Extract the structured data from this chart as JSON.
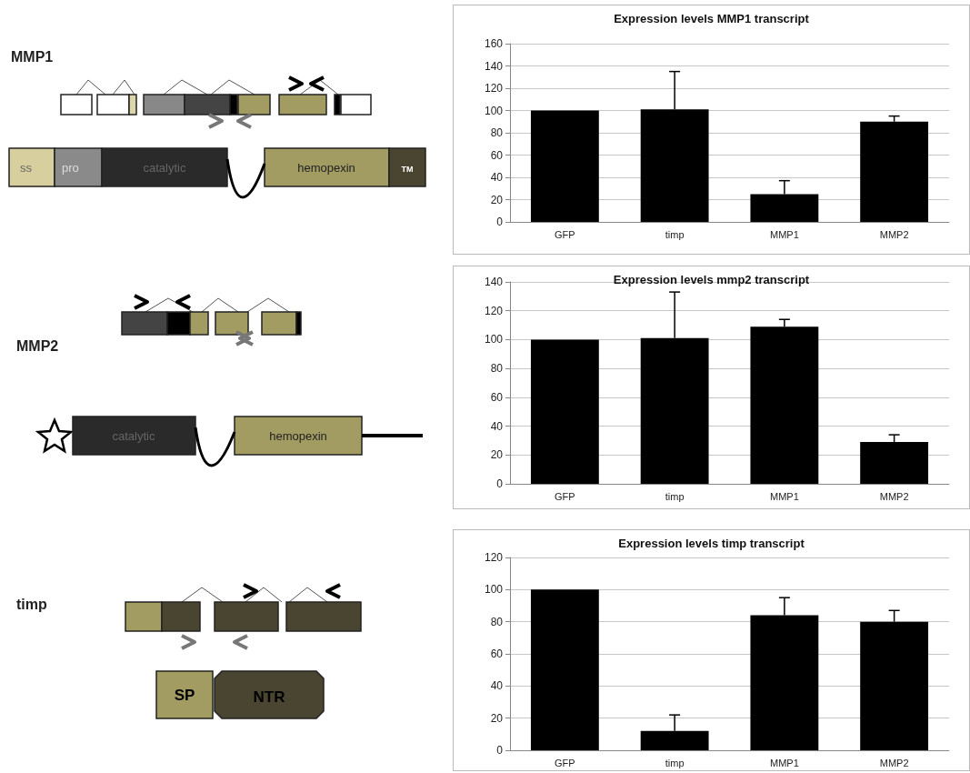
{
  "chart_data": [
    {
      "type": "bar",
      "title": "Expression levels MMP1 transcript",
      "categories": [
        "GFP",
        "timp",
        "MMP1",
        "MMP2"
      ],
      "values": [
        100,
        101,
        25,
        90
      ],
      "errors": [
        null,
        [
          101,
          135
        ],
        [
          25,
          37
        ],
        [
          90,
          95
        ]
      ],
      "color": "#000000",
      "ylim": [
        0,
        160
      ],
      "yticks": [
        0,
        20,
        40,
        60,
        80,
        100,
        120,
        140,
        160
      ],
      "grid": "y",
      "annotations": [
        "MMP1",
        "ss",
        "pro",
        "catalytic",
        "hemopexin",
        "TM"
      ]
    },
    {
      "type": "bar",
      "title": "Expression levels mmp2 transcript",
      "categories": [
        "GFP",
        "timp",
        "MMP1",
        "MMP2"
      ],
      "values": [
        100,
        101,
        109,
        29
      ],
      "errors": [
        null,
        [
          101,
          133
        ],
        [
          109,
          114
        ],
        [
          29,
          34
        ]
      ],
      "color": "#000000",
      "ylim": [
        0,
        140
      ],
      "yticks": [
        0,
        20,
        40,
        60,
        80,
        100,
        120,
        140
      ],
      "grid": "y",
      "annotations": [
        "MMP2",
        "catalytic",
        "hemopexin"
      ]
    },
    {
      "type": "bar",
      "title": "Expression levels timp transcript",
      "categories": [
        "GFP",
        "timp",
        "MMP1",
        "MMP2"
      ],
      "values": [
        100,
        12,
        84,
        80
      ],
      "errors": [
        null,
        [
          12,
          22
        ],
        [
          84,
          95
        ],
        [
          80,
          87
        ]
      ],
      "color": "#000000",
      "ylim": [
        0,
        120
      ],
      "yticks": [
        0,
        20,
        40,
        60,
        80,
        100,
        120
      ],
      "grid": "y",
      "annotations": [
        "timp",
        "SP",
        "NTR"
      ]
    }
  ]
}
